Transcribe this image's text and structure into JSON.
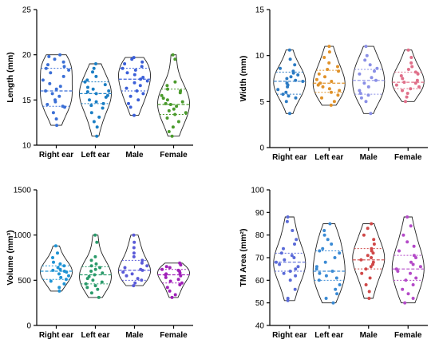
{
  "chart_data": [
    {
      "type": "violin",
      "ylabel": "Length (mm)",
      "ylim": [
        10,
        25
      ],
      "yticks": [
        10,
        15,
        20,
        25
      ],
      "categories": [
        "Right ear",
        "Left ear",
        "Male",
        "Female"
      ],
      "colors": [
        "#3b6fd6",
        "#1a7ec4",
        "#3b5fd8",
        "#4a9a2c"
      ],
      "groups": [
        {
          "min": 12.2,
          "max": 20.0,
          "median": 16.0,
          "q1": 14.3,
          "q3": 18.5,
          "values": [
            20.0,
            19.8,
            19.5,
            19.2,
            18.9,
            18.7,
            18.5,
            18.3,
            18.0,
            17.6,
            17.2,
            16.8,
            16.5,
            16.2,
            16.0,
            15.7,
            15.4,
            15.0,
            14.8,
            14.5,
            14.3,
            14.2,
            13.6,
            12.9,
            12.2
          ]
        },
        {
          "min": 11.0,
          "max": 19.0,
          "median": 15.7,
          "q1": 14.6,
          "q3": 17.0,
          "values": [
            19.0,
            18.5,
            18.1,
            17.6,
            17.2,
            17.0,
            16.7,
            16.4,
            16.2,
            16.0,
            15.9,
            15.7,
            15.5,
            15.3,
            15.0,
            14.8,
            14.6,
            14.4,
            14.1,
            13.6,
            13.1,
            12.6,
            12.0,
            11.0
          ]
        },
        {
          "min": 13.3,
          "max": 19.7,
          "median": 17.3,
          "q1": 16.0,
          "q3": 18.5,
          "values": [
            19.7,
            19.5,
            19.2,
            19.0,
            18.7,
            18.5,
            18.3,
            18.0,
            17.8,
            17.5,
            17.3,
            17.1,
            16.9,
            16.6,
            16.3,
            16.0,
            15.7,
            15.4,
            15.0,
            14.6,
            14.2,
            13.3
          ]
        },
        {
          "min": 11.0,
          "max": 20.0,
          "median": 14.5,
          "q1": 13.4,
          "q3": 16.2,
          "values": [
            20.0,
            19.5,
            17.0,
            16.6,
            16.2,
            16.0,
            15.8,
            15.5,
            15.2,
            15.0,
            14.8,
            14.6,
            14.5,
            14.3,
            14.0,
            13.8,
            13.6,
            13.4,
            13.0,
            12.6,
            12.0,
            11.5,
            11.0
          ]
        }
      ]
    },
    {
      "type": "violin",
      "ylabel": "Width (mm)",
      "ylim": [
        0,
        15
      ],
      "yticks": [
        0,
        5,
        10,
        15
      ],
      "categories": [
        "Right ear",
        "Left ear",
        "Male",
        "Female"
      ],
      "colors": [
        "#2c7bc4",
        "#e0922a",
        "#8a8fe6",
        "#e0708a"
      ],
      "groups": [
        {
          "min": 3.7,
          "max": 10.6,
          "median": 7.2,
          "q1": 5.8,
          "q3": 8.2,
          "values": [
            10.6,
            9.6,
            9.0,
            8.6,
            8.3,
            8.1,
            7.9,
            7.7,
            7.5,
            7.3,
            7.2,
            7.0,
            6.8,
            6.6,
            6.3,
            6.0,
            5.8,
            5.6,
            5.4,
            5.0,
            3.7
          ]
        },
        {
          "min": 4.6,
          "max": 11.0,
          "median": 7.0,
          "q1": 6.0,
          "q3": 8.4,
          "values": [
            11.0,
            10.4,
            9.8,
            9.2,
            8.8,
            8.5,
            8.3,
            8.0,
            7.7,
            7.4,
            7.2,
            7.0,
            6.8,
            6.6,
            6.4,
            6.2,
            6.0,
            5.7,
            5.4,
            5.0,
            4.6
          ]
        },
        {
          "min": 3.7,
          "max": 11.0,
          "median": 7.3,
          "q1": 5.8,
          "q3": 8.5,
          "values": [
            11.0,
            10.0,
            9.5,
            9.0,
            8.6,
            8.3,
            8.0,
            7.6,
            7.3,
            7.0,
            6.6,
            6.2,
            5.9,
            5.7,
            5.4,
            5.0,
            3.7
          ]
        },
        {
          "min": 5.0,
          "max": 10.6,
          "median": 7.1,
          "q1": 6.4,
          "q3": 8.2,
          "values": [
            10.6,
            9.8,
            9.2,
            8.8,
            8.5,
            8.2,
            8.0,
            7.8,
            7.5,
            7.3,
            7.1,
            7.0,
            6.8,
            6.6,
            6.4,
            6.2,
            5.9,
            5.5,
            5.0
          ]
        }
      ]
    },
    {
      "type": "violin",
      "ylabel": "Volume (mm³)",
      "ylim": [
        0,
        1500
      ],
      "yticks": [
        0,
        500,
        1000,
        1500
      ],
      "categories": [
        "Right ear",
        "Left ear",
        "Male",
        "Female"
      ],
      "colors": [
        "#1f93d4",
        "#2a9a6a",
        "#5a5ad8",
        "#a020b8"
      ],
      "groups": [
        {
          "min": 380,
          "max": 880,
          "median": 600,
          "q1": 510,
          "q3": 660,
          "values": [
            880,
            800,
            750,
            700,
            680,
            660,
            640,
            620,
            610,
            600,
            590,
            570,
            550,
            530,
            510,
            490,
            460,
            420,
            380
          ]
        },
        {
          "min": 310,
          "max": 1000,
          "median": 560,
          "q1": 460,
          "q3": 650,
          "values": [
            1000,
            920,
            760,
            720,
            680,
            660,
            640,
            620,
            600,
            580,
            560,
            540,
            520,
            500,
            480,
            460,
            440,
            420,
            400,
            360,
            310
          ]
        },
        {
          "min": 440,
          "max": 1000,
          "median": 610,
          "q1": 500,
          "q3": 720,
          "values": [
            1000,
            920,
            860,
            800,
            760,
            720,
            690,
            660,
            640,
            620,
            610,
            590,
            570,
            550,
            520,
            500,
            470,
            440
          ]
        },
        {
          "min": 310,
          "max": 690,
          "median": 560,
          "q1": 470,
          "q3": 620,
          "values": [
            690,
            670,
            650,
            640,
            620,
            610,
            600,
            580,
            570,
            560,
            550,
            530,
            510,
            490,
            470,
            450,
            420,
            380,
            340,
            310
          ]
        }
      ]
    },
    {
      "type": "violin",
      "ylabel": "TM Area (mm²)",
      "ylim": [
        40,
        100
      ],
      "yticks": [
        40,
        50,
        60,
        70,
        80,
        90,
        100
      ],
      "categories": [
        "Right ear",
        "Left ear",
        "Male",
        "Female"
      ],
      "colors": [
        "#5a6ad8",
        "#3a8ad4",
        "#d04848",
        "#b44ac8"
      ],
      "groups": [
        {
          "min": 51,
          "max": 88,
          "median": 68,
          "q1": 64,
          "q3": 72,
          "values": [
            88,
            86,
            82,
            78,
            76,
            74,
            72,
            71,
            70,
            69,
            68,
            67,
            66,
            65,
            64,
            63,
            62,
            60,
            56,
            52,
            51
          ]
        },
        {
          "min": 50,
          "max": 85,
          "median": 64,
          "q1": 60,
          "q3": 73,
          "values": [
            85,
            82,
            80,
            78,
            76,
            74,
            73,
            72,
            70,
            68,
            66,
            65,
            64,
            63,
            62,
            61,
            60,
            58,
            56,
            54,
            52,
            50
          ]
        },
        {
          "min": 52,
          "max": 85,
          "median": 69,
          "q1": 65,
          "q3": 74,
          "values": [
            85,
            83,
            80,
            78,
            76,
            74,
            73,
            72,
            71,
            70,
            69,
            68,
            67,
            66,
            65,
            63,
            61,
            58,
            55,
            52
          ]
        },
        {
          "min": 50,
          "max": 88,
          "median": 65,
          "q1": 60,
          "q3": 71,
          "values": [
            88,
            84,
            80,
            77,
            75,
            73,
            71,
            70,
            68,
            67,
            66,
            65,
            64,
            63,
            61,
            60,
            58,
            56,
            54,
            52,
            50
          ]
        }
      ]
    }
  ]
}
